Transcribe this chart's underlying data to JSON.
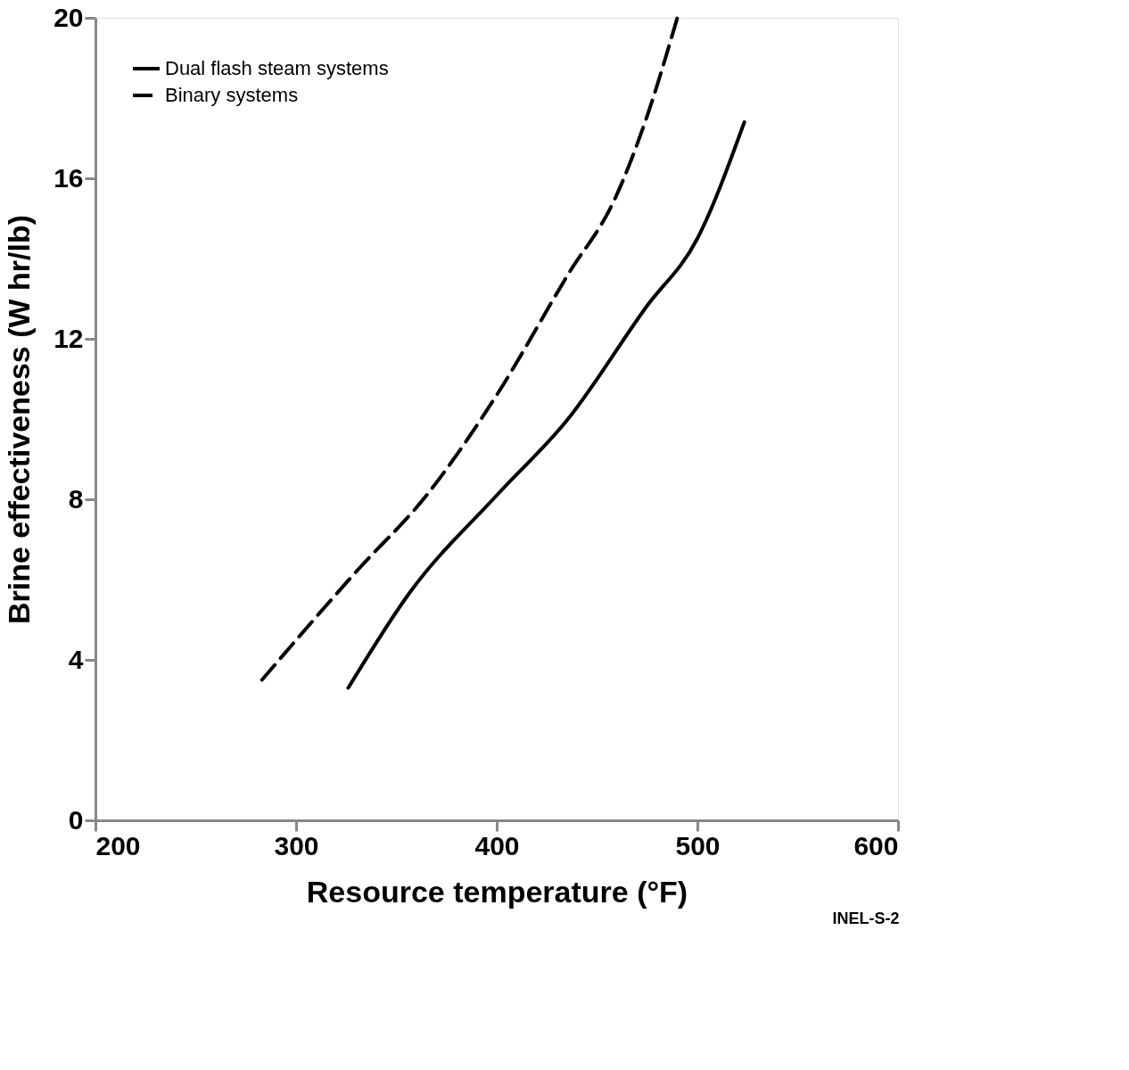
{
  "chart_data": {
    "type": "line",
    "xlabel": "Resource temperature (°F)",
    "ylabel": "Brine effectiveness (W hr/lb)",
    "xlim": [
      200,
      600
    ],
    "xticks": [
      200,
      300,
      400,
      500,
      600
    ],
    "ylim": [
      0,
      20
    ],
    "yticks": [
      0,
      4,
      8,
      12,
      16,
      20
    ],
    "grid": false,
    "legend": "top left",
    "marker": "none",
    "annotations": [
      "INEL-S-2"
    ],
    "series": [
      {
        "name": "Dual flash steam systems",
        "color": "#000000",
        "line_style": "solid",
        "x": [
          326,
          357,
          400,
          435.5,
          474.6,
          500,
          523.4
        ],
        "values": [
          3.3,
          5.7,
          8.1,
          10.0,
          12.8,
          14.5,
          17.4
        ]
      },
      {
        "name": "Binary systems",
        "color": "#000000",
        "line_style": "dashed",
        "x": [
          283,
          330,
          365,
          400,
          435.5,
          459,
          474.6,
          490
        ],
        "values": [
          3.5,
          6.2,
          8.1,
          10.6,
          13.6,
          15.5,
          17.5,
          20.0
        ]
      }
    ]
  }
}
